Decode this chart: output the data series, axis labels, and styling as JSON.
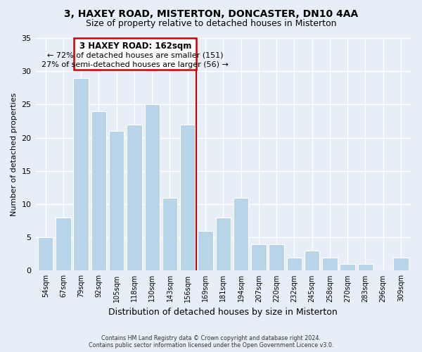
{
  "title": "3, HAXEY ROAD, MISTERTON, DONCASTER, DN10 4AA",
  "subtitle": "Size of property relative to detached houses in Misterton",
  "xlabel": "Distribution of detached houses by size in Misterton",
  "ylabel": "Number of detached properties",
  "bar_labels": [
    "54sqm",
    "67sqm",
    "79sqm",
    "92sqm",
    "105sqm",
    "118sqm",
    "130sqm",
    "143sqm",
    "156sqm",
    "169sqm",
    "181sqm",
    "194sqm",
    "207sqm",
    "220sqm",
    "232sqm",
    "245sqm",
    "258sqm",
    "270sqm",
    "283sqm",
    "296sqm",
    "309sqm"
  ],
  "bar_values": [
    5,
    8,
    29,
    24,
    21,
    22,
    25,
    11,
    22,
    6,
    8,
    11,
    4,
    4,
    2,
    3,
    2,
    1,
    1,
    0,
    2
  ],
  "bar_color": "#b8d4e8",
  "highlight_line_color": "#cc0000",
  "highlight_line_index": 8,
  "ylim": [
    0,
    35
  ],
  "yticks": [
    0,
    5,
    10,
    15,
    20,
    25,
    30,
    35
  ],
  "annotation_title": "3 HAXEY ROAD: 162sqm",
  "annotation_line1": "← 72% of detached houses are smaller (151)",
  "annotation_line2": "27% of semi-detached houses are larger (56) →",
  "annotation_box_color": "#ffffff",
  "annotation_box_edge": "#cc0000",
  "footer_line1": "Contains HM Land Registry data © Crown copyright and database right 2024.",
  "footer_line2": "Contains public sector information licensed under the Open Government Licence v3.0.",
  "background_color": "#e8eef8",
  "grid_color": "#ffffff"
}
